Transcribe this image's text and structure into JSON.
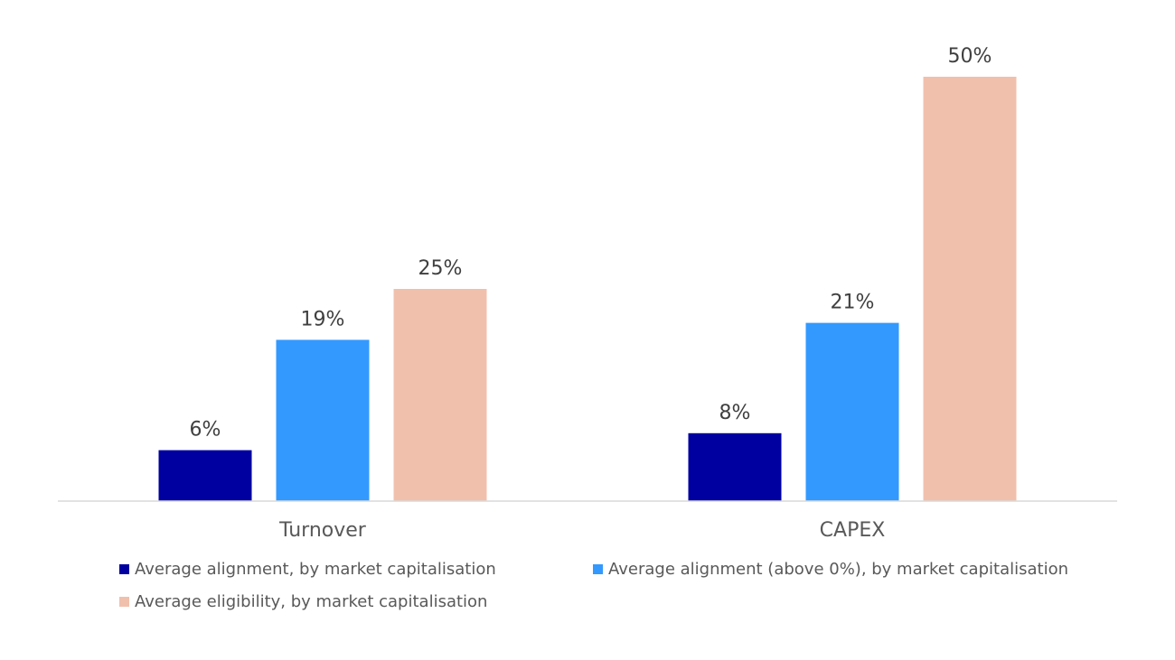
{
  "chart_data": {
    "type": "bar",
    "categories": [
      "Turnover",
      "CAPEX"
    ],
    "series": [
      {
        "name": "Average alignment, by market capitalisation",
        "values": [
          6,
          8
        ],
        "labels": [
          "6%",
          "8%"
        ],
        "color": "#0000A0"
      },
      {
        "name": "Average alignment (above 0%), by market capitalisation",
        "values": [
          19,
          21
        ],
        "labels": [
          "19%",
          "21%"
        ],
        "color": "#3399FF"
      },
      {
        "name": "Average eligibility, by market capitalisation",
        "values": [
          25,
          50
        ],
        "labels": [
          "25%",
          "50%"
        ],
        "color": "#F0C0AD"
      }
    ],
    "ylim": [
      0,
      50
    ],
    "grid": false,
    "legend_position": "bottom"
  }
}
